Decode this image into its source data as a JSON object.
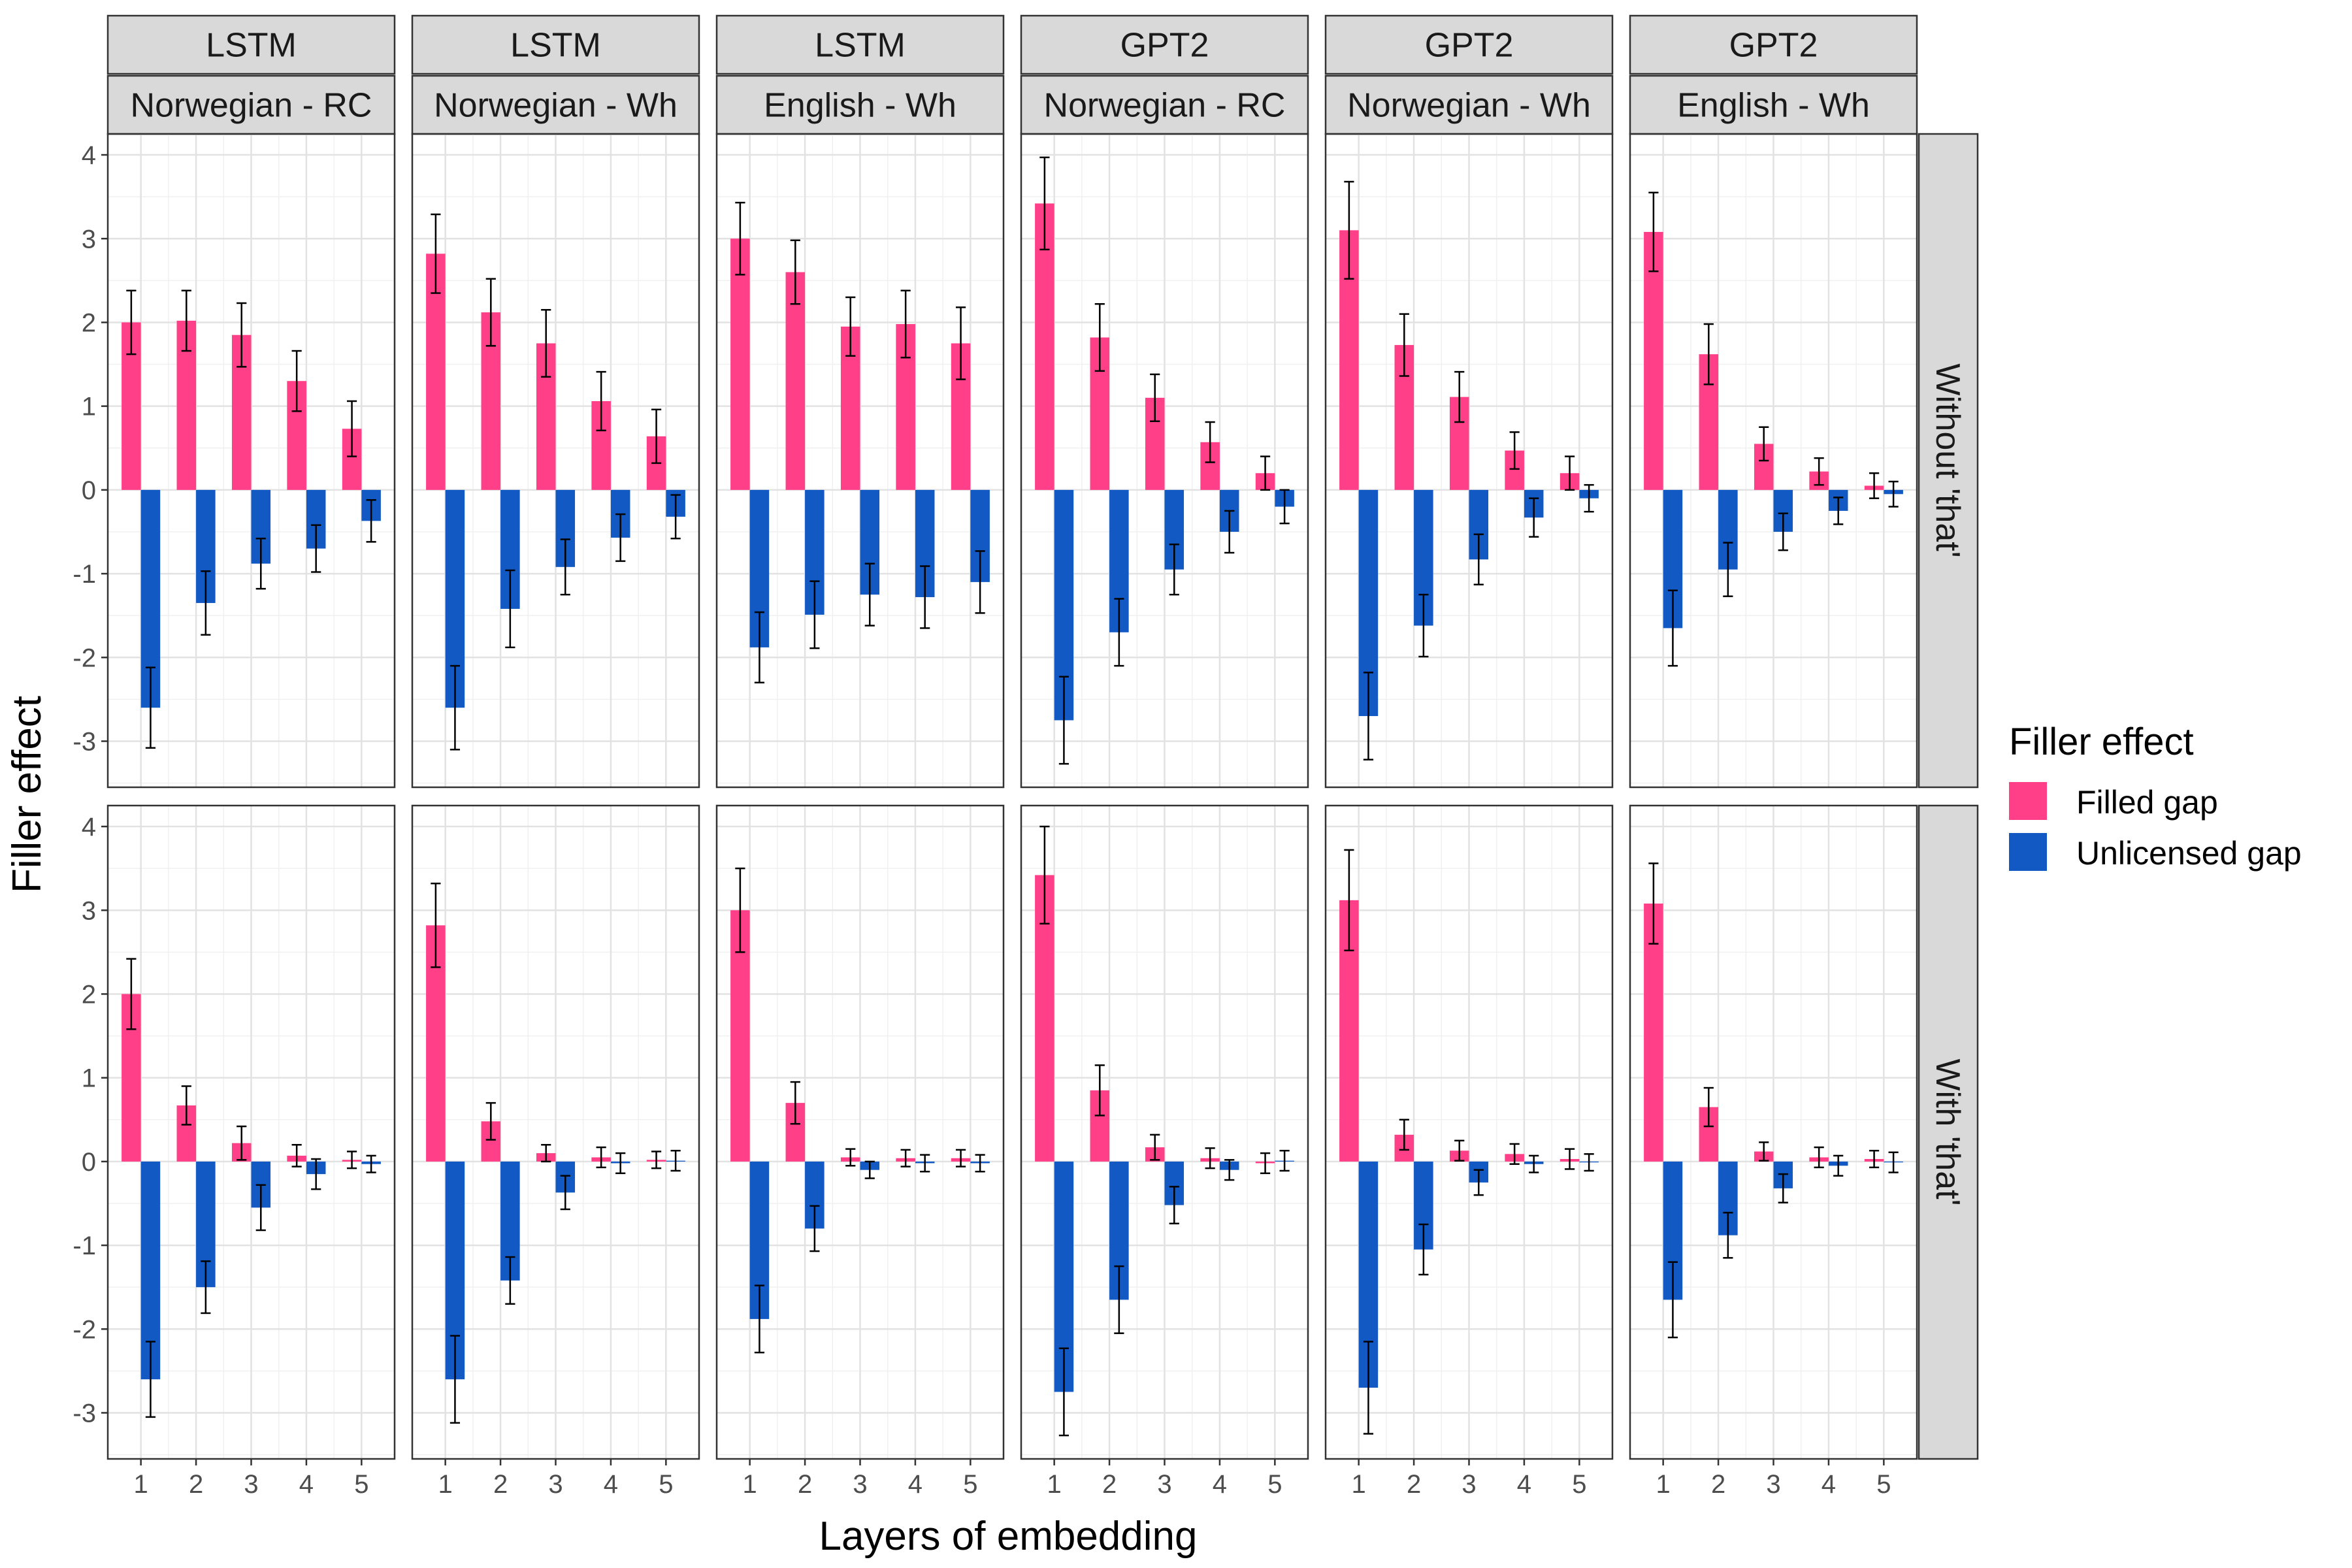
{
  "chart_data": {
    "type": "bar",
    "xlabel": "Layers of embedding",
    "ylabel": "Filler effect",
    "ylim": [
      -3.55,
      4.25
    ],
    "yticks": [
      -3,
      -2,
      -1,
      0,
      1,
      2,
      3,
      4
    ],
    "categories": [
      "1",
      "2",
      "3",
      "4",
      "5"
    ],
    "grid": true,
    "error_bars": true,
    "legend": {
      "title": "Filler effect",
      "position": "right",
      "entries": [
        {
          "name": "Filled gap",
          "color": "#FF3F87"
        },
        {
          "name": "Unlicensed gap",
          "color": "#1259C3"
        }
      ]
    },
    "columns": [
      {
        "model": "LSTM",
        "condition": "Norwegian - RC"
      },
      {
        "model": "LSTM",
        "condition": "Norwegian - Wh"
      },
      {
        "model": "LSTM",
        "condition": "English - Wh"
      },
      {
        "model": "GPT2",
        "condition": "Norwegian - RC"
      },
      {
        "model": "GPT2",
        "condition": "Norwegian - Wh"
      },
      {
        "model": "GPT2",
        "condition": "English - Wh"
      }
    ],
    "rows": [
      "Without 'that'",
      "With 'that'"
    ],
    "panels": [
      {
        "row": 0,
        "col": 0,
        "filled": [
          2.0,
          2.02,
          1.85,
          1.3,
          0.73
        ],
        "filled_err": [
          0.38,
          0.36,
          0.38,
          0.36,
          0.33
        ],
        "unlicensed": [
          -2.6,
          -1.35,
          -0.88,
          -0.7,
          -0.37
        ],
        "unlicensed_err": [
          0.48,
          0.38,
          0.3,
          0.28,
          0.25
        ]
      },
      {
        "row": 0,
        "col": 1,
        "filled": [
          2.82,
          2.12,
          1.75,
          1.06,
          0.64
        ],
        "filled_err": [
          0.47,
          0.4,
          0.4,
          0.35,
          0.32
        ],
        "unlicensed": [
          -2.6,
          -1.42,
          -0.92,
          -0.57,
          -0.32
        ],
        "unlicensed_err": [
          0.5,
          0.46,
          0.33,
          0.28,
          0.26
        ]
      },
      {
        "row": 0,
        "col": 2,
        "filled": [
          3.0,
          2.6,
          1.95,
          1.98,
          1.75
        ],
        "filled_err": [
          0.43,
          0.38,
          0.35,
          0.4,
          0.43
        ],
        "unlicensed": [
          -1.88,
          -1.49,
          -1.25,
          -1.28,
          -1.1
        ],
        "unlicensed_err": [
          0.42,
          0.4,
          0.37,
          0.37,
          0.37
        ]
      },
      {
        "row": 0,
        "col": 3,
        "filled": [
          3.42,
          1.82,
          1.1,
          0.57,
          0.2
        ],
        "filled_err": [
          0.55,
          0.4,
          0.28,
          0.24,
          0.2
        ],
        "unlicensed": [
          -2.75,
          -1.7,
          -0.95,
          -0.5,
          -0.2
        ],
        "unlicensed_err": [
          0.52,
          0.4,
          0.3,
          0.25,
          0.2
        ]
      },
      {
        "row": 0,
        "col": 4,
        "filled": [
          3.1,
          1.73,
          1.11,
          0.47,
          0.2
        ],
        "filled_err": [
          0.58,
          0.37,
          0.3,
          0.22,
          0.2
        ],
        "unlicensed": [
          -2.7,
          -1.62,
          -0.83,
          -0.33,
          -0.1
        ],
        "unlicensed_err": [
          0.52,
          0.37,
          0.3,
          0.23,
          0.16
        ]
      },
      {
        "row": 0,
        "col": 5,
        "filled": [
          3.08,
          1.62,
          0.55,
          0.22,
          0.05
        ],
        "filled_err": [
          0.47,
          0.36,
          0.2,
          0.16,
          0.15
        ],
        "unlicensed": [
          -1.65,
          -0.95,
          -0.5,
          -0.25,
          -0.05
        ],
        "unlicensed_err": [
          0.45,
          0.32,
          0.22,
          0.16,
          0.15
        ]
      },
      {
        "row": 1,
        "col": 0,
        "filled": [
          2.0,
          0.67,
          0.22,
          0.07,
          0.02
        ],
        "filled_err": [
          0.42,
          0.23,
          0.2,
          0.13,
          0.1
        ],
        "unlicensed": [
          -2.6,
          -1.5,
          -0.55,
          -0.15,
          -0.03
        ],
        "unlicensed_err": [
          0.45,
          0.31,
          0.27,
          0.18,
          0.1
        ]
      },
      {
        "row": 1,
        "col": 1,
        "filled": [
          2.82,
          0.48,
          0.1,
          0.05,
          0.02
        ],
        "filled_err": [
          0.5,
          0.22,
          0.1,
          0.12,
          0.1
        ],
        "unlicensed": [
          -2.6,
          -1.42,
          -0.37,
          -0.02,
          0.01
        ],
        "unlicensed_err": [
          0.52,
          0.28,
          0.2,
          0.12,
          0.12
        ]
      },
      {
        "row": 1,
        "col": 2,
        "filled": [
          3.0,
          0.7,
          0.05,
          0.04,
          0.04
        ],
        "filled_err": [
          0.5,
          0.25,
          0.1,
          0.1,
          0.1
        ],
        "unlicensed": [
          -1.88,
          -0.8,
          -0.1,
          -0.02,
          -0.02
        ],
        "unlicensed_err": [
          0.4,
          0.27,
          0.1,
          0.1,
          0.1
        ]
      },
      {
        "row": 1,
        "col": 3,
        "filled": [
          3.42,
          0.85,
          0.17,
          0.04,
          -0.02
        ],
        "filled_err": [
          0.58,
          0.3,
          0.15,
          0.12,
          0.12
        ],
        "unlicensed": [
          -2.75,
          -1.65,
          -0.52,
          -0.1,
          0.01
        ],
        "unlicensed_err": [
          0.52,
          0.4,
          0.22,
          0.12,
          0.12
        ]
      },
      {
        "row": 1,
        "col": 4,
        "filled": [
          3.12,
          0.32,
          0.13,
          0.09,
          0.03
        ],
        "filled_err": [
          0.6,
          0.18,
          0.12,
          0.12,
          0.12
        ],
        "unlicensed": [
          -2.7,
          -1.05,
          -0.25,
          -0.03,
          -0.01
        ],
        "unlicensed_err": [
          0.55,
          0.3,
          0.15,
          0.1,
          0.1
        ]
      },
      {
        "row": 1,
        "col": 5,
        "filled": [
          3.08,
          0.65,
          0.12,
          0.05,
          0.03
        ],
        "filled_err": [
          0.48,
          0.23,
          0.11,
          0.12,
          0.1
        ],
        "unlicensed": [
          -1.65,
          -0.88,
          -0.32,
          -0.05,
          -0.01
        ],
        "unlicensed_err": [
          0.45,
          0.27,
          0.17,
          0.12,
          0.12
        ]
      }
    ]
  }
}
